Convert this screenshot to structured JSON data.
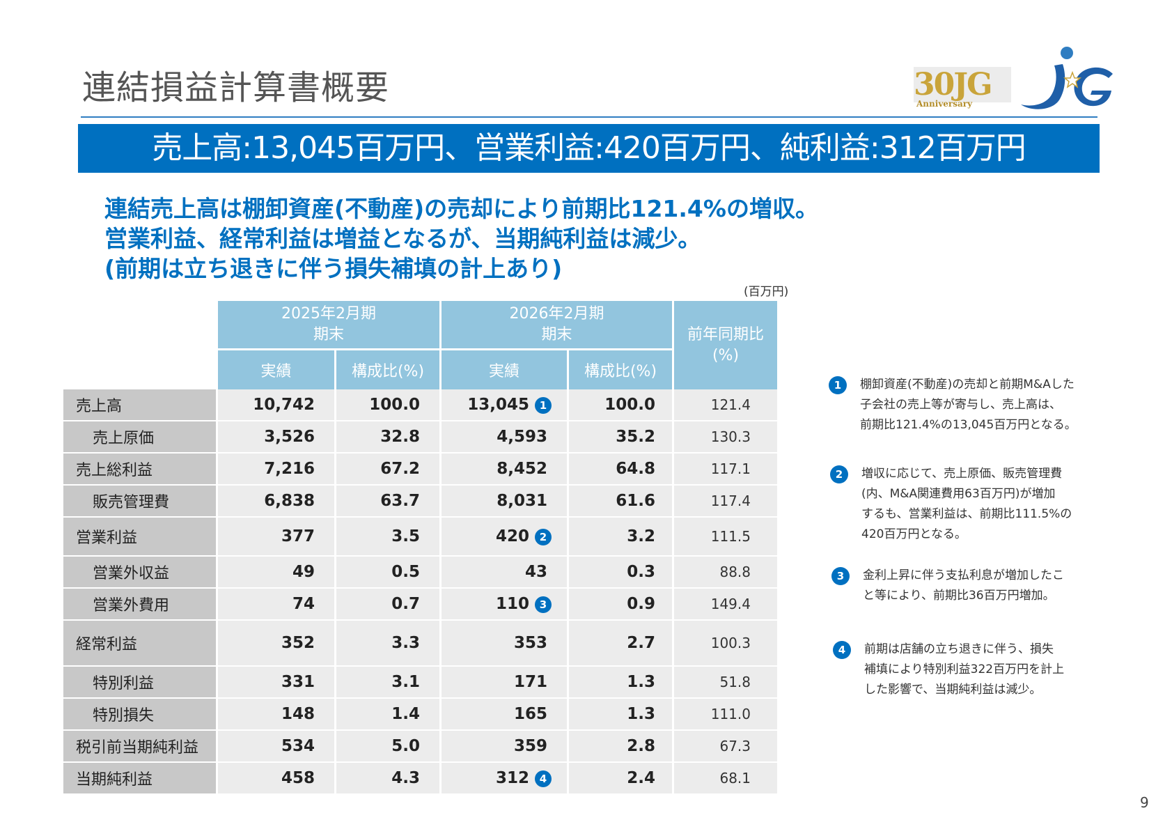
{
  "title": "連結損益計算書概要",
  "logo_anniversary": {
    "number": "30JG",
    "label": "Anniversary"
  },
  "logo_brand": "JG",
  "banner": "売上高:13,045百万円、営業利益:420百万円、純利益:312百万円",
  "summary": [
    "連結売上高は棚卸資産(不動産)の売却により前期比121.4%の増収。",
    "営業利益、経常利益は増益となるが、当期純利益は減少。",
    "(前期は立ち退きに伴う損失補填の計上あり)"
  ],
  "unit": "(百万円)",
  "table": {
    "period1": {
      "line1": "2025年2月期",
      "line2": "期末"
    },
    "period2": {
      "line1": "2026年2月期",
      "line2": "期末"
    },
    "yoy_header": {
      "line1": "前年同期比",
      "line2": "(%)"
    },
    "col_actual": "実績",
    "col_ratio": "構成比(%)",
    "rows": [
      {
        "label": "売上高",
        "a1": "10,742",
        "r1": "100.0",
        "a2": "13,045",
        "badge": "1",
        "r2": "100.0",
        "yoy": "121.4"
      },
      {
        "label": "売上原価",
        "a1": "3,526",
        "r1": "32.8",
        "a2": "4,593",
        "badge": "",
        "r2": "35.2",
        "yoy": "130.3"
      },
      {
        "label": "売上総利益",
        "a1": "7,216",
        "r1": "67.2",
        "a2": "8,452",
        "badge": "",
        "r2": "64.8",
        "yoy": "117.1"
      },
      {
        "label": "販売管理費",
        "a1": "6,838",
        "r1": "63.7",
        "a2": "8,031",
        "badge": "",
        "r2": "61.6",
        "yoy": "117.4"
      },
      {
        "label": "営業利益",
        "a1": "377",
        "r1": "3.5",
        "a2": "420",
        "badge": "2",
        "r2": "3.2",
        "yoy": "111.5"
      },
      {
        "label": "営業外収益",
        "a1": "49",
        "r1": "0.5",
        "a2": "43",
        "badge": "",
        "r2": "0.3",
        "yoy": "88.8"
      },
      {
        "label": "営業外費用",
        "a1": "74",
        "r1": "0.7",
        "a2": "110",
        "badge": "3",
        "r2": "0.9",
        "yoy": "149.4"
      },
      {
        "label": "経常利益",
        "a1": "352",
        "r1": "3.3",
        "a2": "353",
        "badge": "",
        "r2": "2.7",
        "yoy": "100.3"
      },
      {
        "label": "特別利益",
        "a1": "331",
        "r1": "3.1",
        "a2": "171",
        "badge": "",
        "r2": "1.3",
        "yoy": "51.8"
      },
      {
        "label": "特別損失",
        "a1": "148",
        "r1": "1.4",
        "a2": "165",
        "badge": "",
        "r2": "1.3",
        "yoy": "111.0"
      },
      {
        "label": "税引前当期純利益",
        "a1": "534",
        "r1": "5.0",
        "a2": "359",
        "badge": "",
        "r2": "2.8",
        "yoy": "67.3"
      },
      {
        "label": "当期純利益",
        "a1": "458",
        "r1": "4.3",
        "a2": "312",
        "badge": "4",
        "r2": "2.4",
        "yoy": "68.1"
      }
    ]
  },
  "notes": [
    {
      "num": "1",
      "lines": [
        "棚卸資産(不動産)の売却と前期M&Aした",
        "子会社の売上等が寄与し、売上高は、",
        "前期比121.4%の13,045百万円となる。"
      ]
    },
    {
      "num": "2",
      "lines": [
        "増収に応じて、売上原価、販売管理費",
        "(内、M&A関連費用63百万円)が増加",
        "するも、営業利益は、前期比111.5%の",
        "420百万円となる。"
      ]
    },
    {
      "num": "3",
      "lines": [
        "金利上昇に伴う支払利息が増加したこ",
        "と等により、前期比36百万円増加。"
      ]
    },
    {
      "num": "4",
      "lines": [
        "前期は店舗の立ち退きに伴う、損失",
        "補填により特別利益322百万円を計上",
        "した影響で、当期純利益は減少。"
      ]
    }
  ],
  "page_number": "9",
  "colors": {
    "brand_blue": "#0070c0",
    "header_blue": "#92c5de",
    "label_gray": "#c8c8c8",
    "cell_gray": "#ececec",
    "gold": "#c9a43a"
  }
}
